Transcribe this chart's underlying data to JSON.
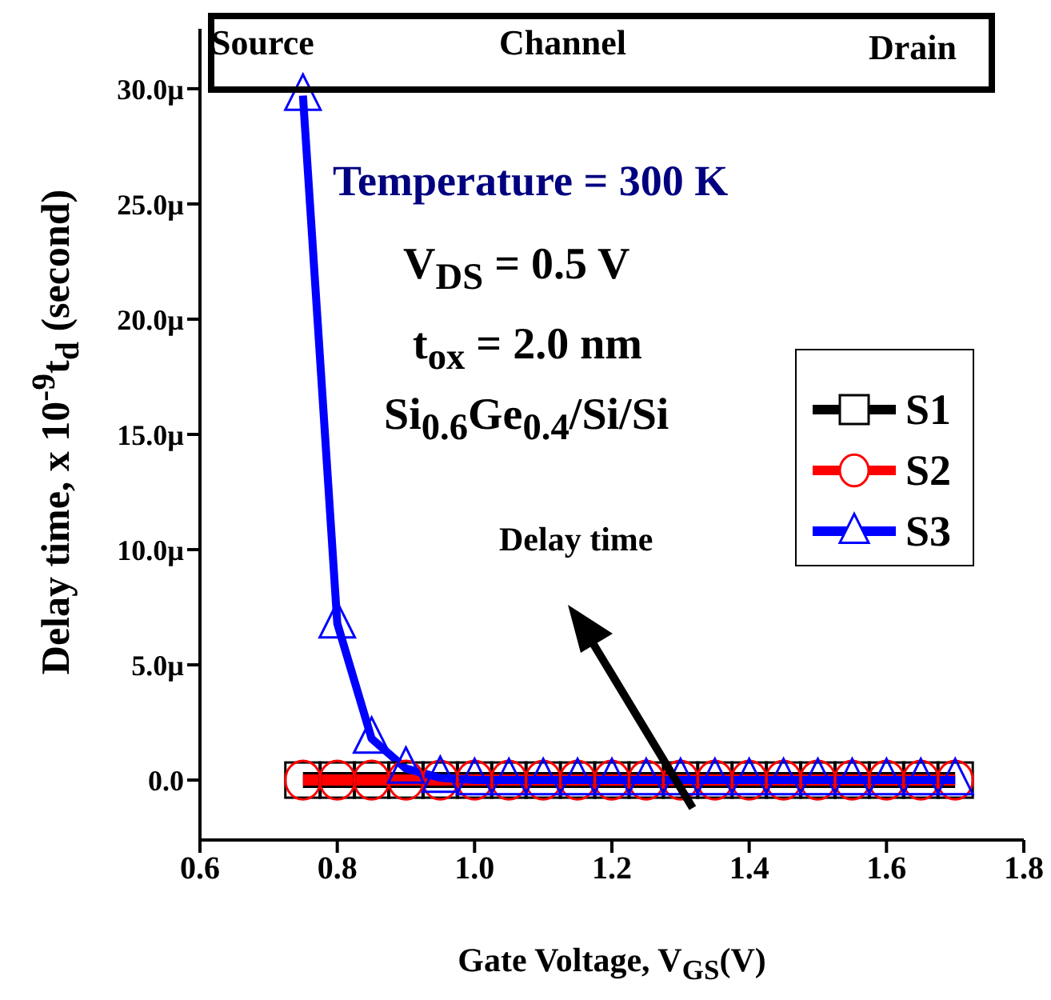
{
  "chart_data": {
    "type": "line",
    "xlabel": "Gate Voltage, V$_{GS}$(V)",
    "ylabel": "Delay time, x 10$^{-9}$t$_{d}$ (second)",
    "x": [
      0.75,
      0.8,
      0.85,
      0.9,
      0.95,
      1.0,
      1.05,
      1.1,
      1.15,
      1.2,
      1.25,
      1.3,
      1.35,
      1.4,
      1.45,
      1.5,
      1.55,
      1.6,
      1.65,
      1.7
    ],
    "series": [
      {
        "name": "S1",
        "color": "#000000",
        "marker": "square",
        "values": [
          0,
          0,
          0,
          0,
          0,
          0,
          0,
          0,
          0,
          0,
          0,
          0,
          0,
          0,
          0,
          0,
          0,
          0,
          0,
          0
        ]
      },
      {
        "name": "S2",
        "color": "#ff0000",
        "marker": "circle",
        "values": [
          0,
          0,
          0,
          0,
          0,
          0,
          0,
          0,
          0,
          0,
          0,
          0,
          0,
          0,
          0,
          0,
          0,
          0,
          0,
          0
        ]
      },
      {
        "name": "S3",
        "color": "#0000ff",
        "marker": "triangle",
        "values": [
          29.7,
          6.8,
          1.8,
          0.5,
          0.1,
          0,
          0,
          0,
          0,
          0,
          0,
          0,
          0,
          0,
          0,
          0,
          0,
          0,
          0,
          0
        ]
      }
    ],
    "xlim": [
      0.6,
      1.8
    ],
    "xticks": [
      0.6,
      0.8,
      {
        "value": 1,
        "label": "1.0"
      },
      1.2,
      1.4,
      1.6,
      1.8
    ],
    "ylim": [
      -2.6,
      32.6
    ],
    "yticks": [
      {
        "value": 0,
        "label": "0.0"
      },
      {
        "value": 5,
        "label": "5.0µ"
      },
      {
        "value": 10,
        "label": "10.0µ"
      },
      {
        "value": 15,
        "label": "15.0µ"
      },
      {
        "value": 20,
        "label": "20.0µ"
      },
      {
        "value": 25,
        "label": "25.0µ"
      },
      {
        "value": 30,
        "label": "30.0µ"
      }
    ],
    "legend": "right",
    "grid": false,
    "line_style": "solid",
    "annotations": [
      "Source",
      "Channel",
      "Drain",
      "Temperature = 300 K",
      "V$_{DS}$ = 0.5 V",
      "t$_{ox}$ = 2.0 nm",
      "Si$_{0.6}$Ge$_{0.4}$/Si/Si",
      "Delay time"
    ]
  }
}
